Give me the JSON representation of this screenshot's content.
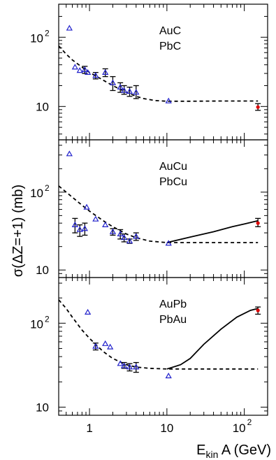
{
  "chart_data": {
    "type": "scatter",
    "layout": "three vertically stacked panels sharing a log x axis",
    "ylabel": "σ(ΔZ=+1) (mb)",
    "xlabel_main": "E",
    "xlabel_sub": "kin",
    "xlabel_rest": " A (GeV)",
    "x_scale": "log",
    "y_scale": "log",
    "xlim": [
      0.4,
      200
    ],
    "x_ticks": [
      {
        "value": 1,
        "label": "1"
      },
      {
        "value": 10,
        "label": "10"
      },
      {
        "value": 100,
        "base": "10",
        "exp": "2"
      }
    ],
    "colors": {
      "triangle": "#2222cc",
      "red_point": "#dd0000",
      "curve": "#000000"
    },
    "panels": [
      {
        "id": "top",
        "labels": [
          "AuC",
          "PbC"
        ],
        "ylim": [
          3.3,
          300
        ],
        "y_ticks": [
          {
            "value": 10,
            "label": "10"
          },
          {
            "value": 100,
            "base": "10",
            "exp": "2"
          }
        ],
        "triangles": [
          {
            "x": 0.55,
            "y": 135
          },
          {
            "x": 0.65,
            "y": 37
          },
          {
            "x": 0.75,
            "y": 33
          },
          {
            "x": 0.87,
            "y": 34,
            "err": [
              30,
              38
            ]
          },
          {
            "x": 0.95,
            "y": 31
          },
          {
            "x": 1.2,
            "y": 28,
            "err": [
              25,
              31
            ]
          },
          {
            "x": 1.6,
            "y": 31,
            "err": [
              27,
              35
            ]
          },
          {
            "x": 2.0,
            "y": 22,
            "err": [
              17,
              27
            ]
          },
          {
            "x": 2.5,
            "y": 19,
            "err": [
              16,
              22
            ]
          },
          {
            "x": 2.8,
            "y": 17,
            "err": [
              15,
              20
            ]
          },
          {
            "x": 3.3,
            "y": 16.5,
            "err": [
              14,
              19
            ]
          },
          {
            "x": 4.0,
            "y": 16,
            "err": [
              13,
              20
            ]
          },
          {
            "x": 10.5,
            "y": 12
          }
        ],
        "red_points": [
          {
            "x": 150,
            "y": 9.8,
            "err": [
              8.8,
              11
            ]
          }
        ],
        "dashed_curve": [
          [
            0.4,
            75
          ],
          [
            0.5,
            57
          ],
          [
            0.6,
            47
          ],
          [
            0.8,
            37
          ],
          [
            1.0,
            31
          ],
          [
            1.5,
            24
          ],
          [
            2.0,
            20
          ],
          [
            3.0,
            16
          ],
          [
            4.0,
            14
          ],
          [
            5.0,
            13
          ],
          [
            7.0,
            12.2
          ],
          [
            10,
            11.9
          ],
          [
            20,
            11.9
          ],
          [
            50,
            12
          ],
          [
            150,
            12
          ]
        ],
        "solid_curve": []
      },
      {
        "id": "middle",
        "labels": [
          "AuCu",
          "PbCu"
        ],
        "ylim": [
          8,
          470
        ],
        "y_ticks": [
          {
            "value": 10,
            "label": "10"
          },
          {
            "value": 100,
            "base": "10",
            "exp": "2"
          }
        ],
        "triangles": [
          {
            "x": 0.55,
            "y": 310
          },
          {
            "x": 0.65,
            "y": 38,
            "err": [
              30,
              46
            ]
          },
          {
            "x": 0.75,
            "y": 33,
            "err": [
              27,
              38
            ]
          },
          {
            "x": 0.87,
            "y": 34,
            "err": [
              28,
              40
            ]
          },
          {
            "x": 0.92,
            "y": 64
          },
          {
            "x": 1.2,
            "y": 45
          },
          {
            "x": 1.6,
            "y": 38
          },
          {
            "x": 2.0,
            "y": 31,
            "err": [
              28,
              34
            ]
          },
          {
            "x": 2.5,
            "y": 29,
            "err": [
              25,
              33
            ]
          },
          {
            "x": 2.8,
            "y": 26,
            "err": [
              23,
              29
            ]
          },
          {
            "x": 3.3,
            "y": 23.5,
            "err": [
              22,
              25
            ]
          },
          {
            "x": 4.0,
            "y": 27,
            "err": [
              24,
              30
            ]
          },
          {
            "x": 10.5,
            "y": 22
          }
        ],
        "red_points": [
          {
            "x": 150,
            "y": 40,
            "err": [
              36,
              46
            ]
          }
        ],
        "dashed_curve": [
          [
            0.4,
            120
          ],
          [
            0.5,
            100
          ],
          [
            0.6,
            86
          ],
          [
            0.8,
            68
          ],
          [
            1.0,
            57
          ],
          [
            1.5,
            43
          ],
          [
            2.0,
            36
          ],
          [
            3.0,
            29
          ],
          [
            4.0,
            26
          ],
          [
            6.0,
            23.5
          ],
          [
            10,
            22.5
          ],
          [
            20,
            22.5
          ],
          [
            50,
            22.5
          ],
          [
            150,
            22.5
          ]
        ],
        "solid_curve": [
          [
            10,
            22.5
          ],
          [
            20,
            26.5
          ],
          [
            40,
            31
          ],
          [
            70,
            36
          ],
          [
            100,
            39
          ],
          [
            150,
            43
          ]
        ]
      },
      {
        "id": "bottom",
        "labels": [
          "AuPb",
          "PbAu"
        ],
        "ylim": [
          8,
          350
        ],
        "y_ticks": [
          {
            "value": 10,
            "label": "10"
          },
          {
            "value": 100,
            "base": "10",
            "exp": "2"
          }
        ],
        "triangles": [
          {
            "x": 0.95,
            "y": 135
          },
          {
            "x": 1.2,
            "y": 53,
            "err": [
              48,
              58
            ]
          },
          {
            "x": 1.6,
            "y": 57
          },
          {
            "x": 1.85,
            "y": 52
          },
          {
            "x": 2.5,
            "y": 33
          },
          {
            "x": 2.8,
            "y": 31,
            "err": [
              29,
              34
            ]
          },
          {
            "x": 3.3,
            "y": 30,
            "err": [
              27,
              33
            ]
          },
          {
            "x": 4.0,
            "y": 30,
            "err": [
              26,
              34
            ]
          },
          {
            "x": 10.5,
            "y": 23.5
          }
        ],
        "red_points": [
          {
            "x": 150,
            "y": 142,
            "err": [
              128,
              156
            ]
          }
        ],
        "dashed_curve": [
          [
            0.4,
            190
          ],
          [
            0.5,
            150
          ],
          [
            0.6,
            118
          ],
          [
            0.8,
            83
          ],
          [
            1.0,
            66
          ],
          [
            1.5,
            46
          ],
          [
            2.0,
            38
          ],
          [
            3.0,
            32
          ],
          [
            4.0,
            30
          ],
          [
            6.0,
            29
          ],
          [
            10,
            28.5
          ],
          [
            20,
            28.5
          ],
          [
            50,
            28.5
          ],
          [
            150,
            28.5
          ]
        ],
        "solid_curve": [
          [
            10,
            28.5
          ],
          [
            15,
            32
          ],
          [
            20,
            38
          ],
          [
            30,
            56
          ],
          [
            50,
            85
          ],
          [
            80,
            118
          ],
          [
            120,
            142
          ],
          [
            150,
            150
          ]
        ]
      }
    ]
  }
}
